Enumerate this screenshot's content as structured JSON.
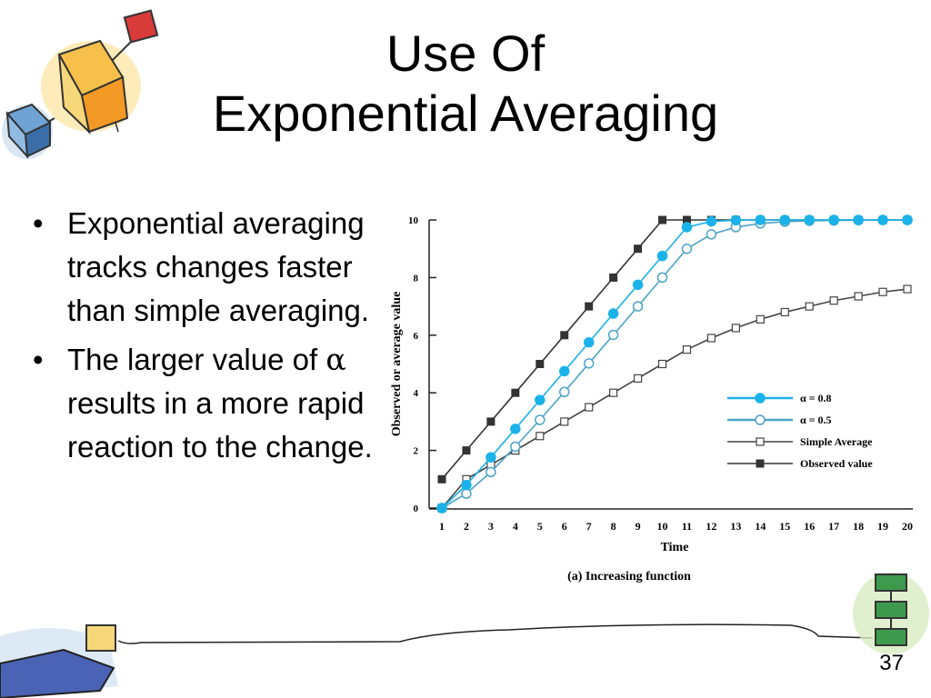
{
  "slide": {
    "title_line1": "Use Of",
    "title_line2": "Exponential Averaging",
    "bullet1": "Exponential averaging tracks changes faster than simple averaging.",
    "bullet2_pre": "The larger value of",
    "bullet2_alpha": "α",
    "bullet2_post": "results in a more rapid reaction to the change.",
    "bullet_marker": "•",
    "page_number": "37"
  },
  "chart_data": {
    "type": "line",
    "xlabel": "Time",
    "ylabel": "Observed or average value",
    "caption": "(a) Increasing function",
    "xlim": [
      1,
      20
    ],
    "ylim": [
      0,
      10
    ],
    "yticks": [
      0,
      2,
      4,
      6,
      8,
      10
    ],
    "x": [
      1,
      2,
      3,
      4,
      5,
      6,
      7,
      8,
      9,
      10,
      11,
      12,
      13,
      14,
      15,
      16,
      17,
      18,
      19,
      20
    ],
    "legend_position": "center-right",
    "series": [
      {
        "name": "α = 0.8",
        "marker": "filled-circle",
        "color": "#1ab2e8",
        "values": [
          0,
          0.8,
          1.76,
          2.75,
          3.75,
          4.75,
          5.75,
          6.75,
          7.75,
          8.75,
          9.75,
          9.95,
          9.99,
          10,
          10,
          10,
          10,
          10,
          10,
          10
        ]
      },
      {
        "name": "α = 0.5",
        "marker": "open-circle",
        "color": "#4ca3c6",
        "values": [
          0,
          0.5,
          1.25,
          2.13,
          3.06,
          4.03,
          5.02,
          6.01,
          7.0,
          8.0,
          9.0,
          9.5,
          9.75,
          9.88,
          9.94,
          9.97,
          9.98,
          9.99,
          10,
          10
        ]
      },
      {
        "name": "Simple Average",
        "marker": "open-square",
        "color": "#444444",
        "values": [
          0,
          1,
          1.5,
          2,
          2.5,
          3,
          3.5,
          4,
          4.5,
          5,
          5.5,
          5.9,
          6.25,
          6.55,
          6.8,
          7.0,
          7.2,
          7.35,
          7.5,
          7.6
        ]
      },
      {
        "name": "Observed value",
        "marker": "filled-square",
        "color": "#333333",
        "values": [
          1,
          2,
          3,
          4,
          5,
          6,
          7,
          8,
          9,
          10,
          10,
          10,
          10,
          10,
          10,
          10,
          10,
          10,
          10,
          10
        ]
      }
    ]
  }
}
